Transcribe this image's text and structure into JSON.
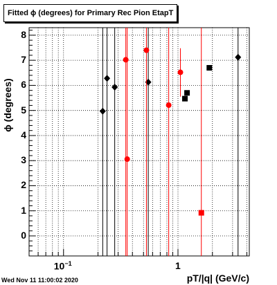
{
  "chart_data": {
    "type": "scatter",
    "title": "Fitted ϕ (degrees) for Primary Rec Pion EtapT",
    "xlabel": "pT/|q| (GeV/c)",
    "ylabel": "ϕ (degrees)",
    "x_scale": "log",
    "xlim": [
      0.05,
      4.2
    ],
    "ylim": [
      -0.8,
      8.3
    ],
    "grid": true,
    "y_ticks": [
      "0",
      "1",
      "2",
      "3",
      "4",
      "5",
      "6",
      "7",
      "8"
    ],
    "x_ticks": [
      {
        "base": "10",
        "exp": "−1",
        "value": 0.1
      },
      {
        "base": "1",
        "exp": "",
        "value": 1
      }
    ],
    "series": [
      {
        "color": "#000000",
        "marker": "diamond",
        "points": [
          {
            "x": 0.22,
            "y": 4.97,
            "ylo": -0.8,
            "yhi": 8.3
          },
          {
            "x": 0.24,
            "y": 6.28,
            "ylo": -0.8,
            "yhi": 8.3
          },
          {
            "x": 0.28,
            "y": 5.93,
            "ylo": -0.8,
            "yhi": 8.3
          },
          {
            "x": 0.55,
            "y": 6.13,
            "ylo": -0.8,
            "yhi": 8.3
          },
          {
            "x": 3.35,
            "y": 7.12,
            "ylo": -0.8,
            "yhi": 8.3
          }
        ]
      },
      {
        "color": "#ff0000",
        "marker": "circle",
        "points": [
          {
            "x": 0.35,
            "y": 7.02,
            "ylo": -0.8,
            "yhi": 8.3
          },
          {
            "x": 0.36,
            "y": 3.06,
            "ylo": -0.8,
            "yhi": 8.3
          },
          {
            "x": 0.53,
            "y": 7.4,
            "ylo": -0.8,
            "yhi": 8.3
          },
          {
            "x": 0.83,
            "y": 5.21,
            "ylo": -0.8,
            "yhi": 8.3
          },
          {
            "x": 1.05,
            "y": 6.52,
            "ylo": 5.55,
            "yhi": 7.48
          }
        ]
      },
      {
        "color": "#000000",
        "marker": "square",
        "points": [
          {
            "x": 1.15,
            "y": 5.47
          },
          {
            "x": 1.2,
            "y": 5.7
          },
          {
            "x": 1.88,
            "y": 6.7
          }
        ]
      },
      {
        "color": "#ff0000",
        "marker": "square",
        "points": [
          {
            "x": 1.6,
            "y": 0.92,
            "ylo": -0.8,
            "yhi": 8.3
          }
        ]
      }
    ]
  },
  "footer": {
    "date": "Wed Nov 11 11:00:02 2020"
  }
}
